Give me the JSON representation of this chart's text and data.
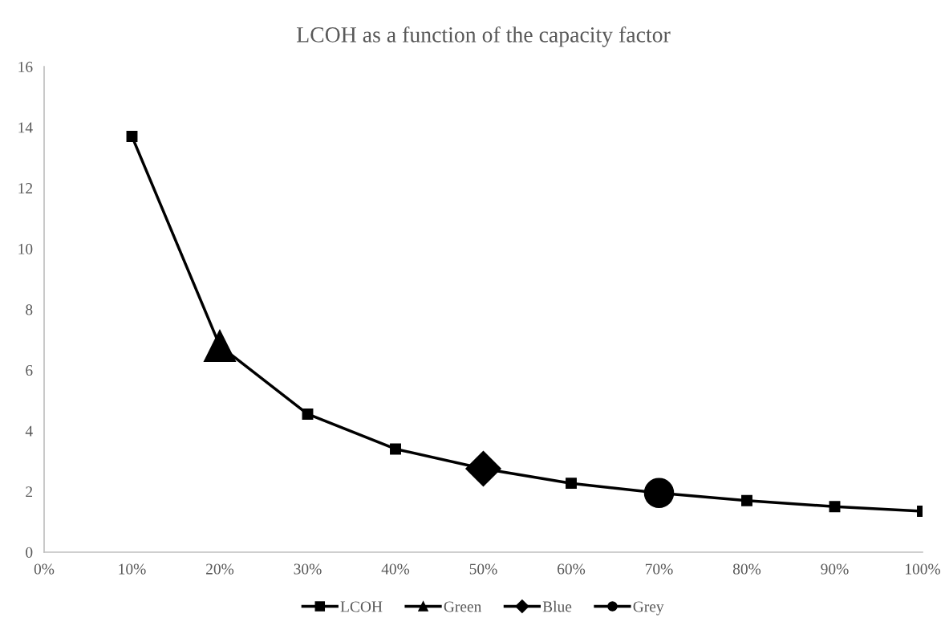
{
  "chart_data": {
    "type": "line",
    "title": "LCOH as a function of the capacity factor",
    "categories": [
      "0%",
      "10%",
      "20%",
      "30%",
      "40%",
      "50%",
      "60%",
      "70%",
      "80%",
      "90%",
      "100%"
    ],
    "series": [
      {
        "name": "LCOH",
        "color": "#000000",
        "marker": "square",
        "values": [
          null,
          13.7,
          6.8,
          4.55,
          3.4,
          2.75,
          2.27,
          1.95,
          1.7,
          1.5,
          1.35
        ]
      },
      {
        "name": "Green",
        "color": "#000000",
        "marker": "triangle",
        "values": [
          null,
          null,
          6.8,
          null,
          null,
          null,
          null,
          null,
          null,
          null,
          null
        ]
      },
      {
        "name": "Blue",
        "color": "#000000",
        "marker": "diamond",
        "values": [
          null,
          null,
          null,
          null,
          null,
          2.75,
          null,
          null,
          null,
          null,
          null
        ]
      },
      {
        "name": "Grey",
        "color": "#000000",
        "marker": "circle",
        "values": [
          null,
          null,
          null,
          null,
          null,
          null,
          null,
          1.95,
          null,
          null,
          null
        ]
      }
    ],
    "ylim": [
      0,
      16
    ],
    "yticks": [
      0,
      2,
      4,
      6,
      8,
      10,
      12,
      14,
      16
    ],
    "grid": false,
    "legend": "bottom",
    "line_style": "solid"
  }
}
